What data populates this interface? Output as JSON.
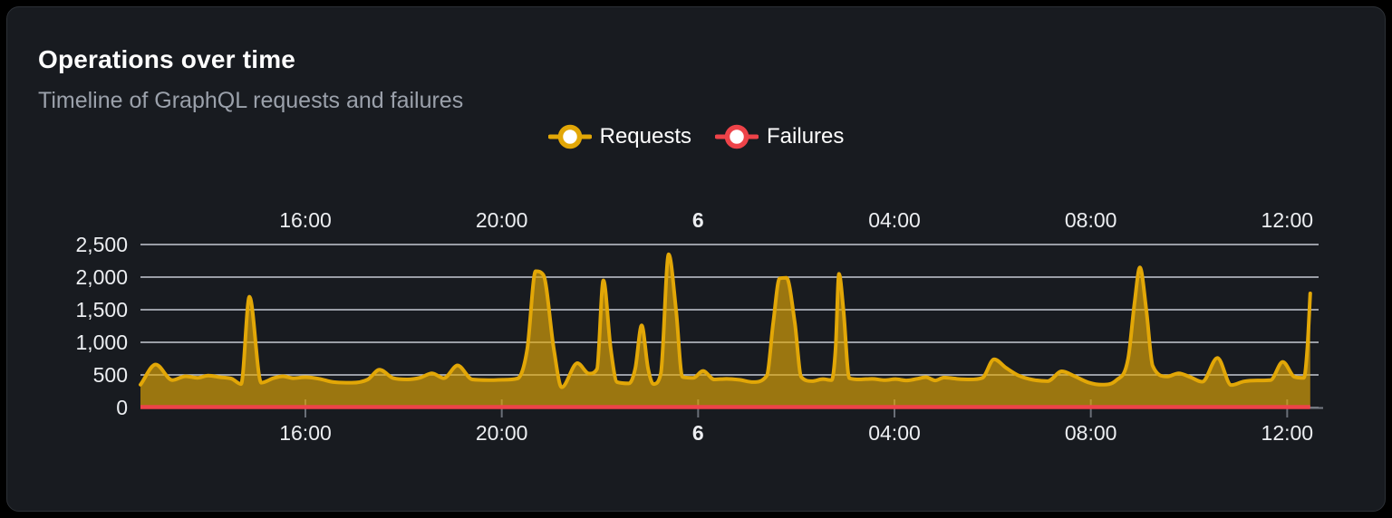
{
  "header": {
    "title": "Operations over time",
    "subtitle": "Timeline of GraphQL requests and failures"
  },
  "legend": {
    "items": [
      {
        "label": "Requests",
        "color": "#e2a707"
      },
      {
        "label": "Failures",
        "color": "#ee4349"
      }
    ]
  },
  "colors": {
    "page_bg": "#000000",
    "card_bg": "#181b20",
    "card_border": "#2c3036",
    "title": "#ffffff",
    "subtitle": "#9ba1ab",
    "axis_label": "#eceef1",
    "gridline": "#d4d8e2",
    "tick": "#6a6f78",
    "axis_stub": "#767b84",
    "requests": "#e2a707",
    "failures": "#ee4349",
    "legend_marker_inner": "#ffffff"
  },
  "chart_data": {
    "type": "area",
    "title": "Operations over time",
    "grid": "horizontal",
    "legend_position": "top-center",
    "x_axis": {
      "unit": "hours (offset from chart start, ~12:40 day 5 to ~12:40 day 6)",
      "range_hours": [
        0,
        24
      ],
      "ticks": [
        {
          "label": "16:00",
          "pos": 3.36,
          "bold": false
        },
        {
          "label": "20:00",
          "pos": 7.36,
          "bold": false
        },
        {
          "label": "6",
          "pos": 11.36,
          "bold": true
        },
        {
          "label": "04:00",
          "pos": 15.36,
          "bold": false
        },
        {
          "label": "08:00",
          "pos": 19.36,
          "bold": false
        },
        {
          "label": "12:00",
          "pos": 23.36,
          "bold": false
        }
      ]
    },
    "y_axis": {
      "range": [
        0,
        2500
      ],
      "tick_values": [
        0,
        500,
        1000,
        1500,
        2000,
        2500
      ],
      "tick_labels": [
        "0",
        "500",
        "1,000",
        "1,500",
        "2,000",
        "2,500"
      ]
    },
    "series": [
      {
        "name": "Requests",
        "color": "#e2a707",
        "fill_opacity": 0.65,
        "points": [
          [
            0,
            350
          ],
          [
            0.31,
            660
          ],
          [
            0.65,
            420
          ],
          [
            0.92,
            480
          ],
          [
            1.16,
            455
          ],
          [
            1.38,
            490
          ],
          [
            1.62,
            465
          ],
          [
            1.86,
            440
          ],
          [
            2.05,
            360
          ],
          [
            2.22,
            1700
          ],
          [
            2.46,
            380
          ],
          [
            2.71,
            450
          ],
          [
            2.9,
            480
          ],
          [
            3.12,
            450
          ],
          [
            3.36,
            465
          ],
          [
            3.64,
            440
          ],
          [
            3.93,
            390
          ],
          [
            4.3,
            380
          ],
          [
            4.63,
            430
          ],
          [
            4.87,
            580
          ],
          [
            5.15,
            450
          ],
          [
            5.43,
            430
          ],
          [
            5.69,
            455
          ],
          [
            5.94,
            525
          ],
          [
            6.18,
            450
          ],
          [
            6.46,
            645
          ],
          [
            6.76,
            430
          ],
          [
            7.09,
            420
          ],
          [
            7.38,
            425
          ],
          [
            7.68,
            445
          ],
          [
            7.88,
            900
          ],
          [
            8.05,
            2090
          ],
          [
            8.21,
            2030
          ],
          [
            8.42,
            900
          ],
          [
            8.58,
            310
          ],
          [
            8.9,
            680
          ],
          [
            9.14,
            520
          ],
          [
            9.3,
            590
          ],
          [
            9.43,
            1950
          ],
          [
            9.58,
            900
          ],
          [
            9.71,
            390
          ],
          [
            9.95,
            370
          ],
          [
            10.08,
            600
          ],
          [
            10.21,
            1260
          ],
          [
            10.34,
            600
          ],
          [
            10.45,
            360
          ],
          [
            10.6,
            520
          ],
          [
            10.76,
            2350
          ],
          [
            10.91,
            1500
          ],
          [
            11.04,
            470
          ],
          [
            11.26,
            455
          ],
          [
            11.46,
            560
          ],
          [
            11.69,
            430
          ],
          [
            11.94,
            440
          ],
          [
            12.2,
            425
          ],
          [
            12.48,
            390
          ],
          [
            12.76,
            490
          ],
          [
            12.89,
            1300
          ],
          [
            13.02,
            1980
          ],
          [
            13.16,
            1990
          ],
          [
            13.33,
            1300
          ],
          [
            13.46,
            470
          ],
          [
            13.68,
            405
          ],
          [
            13.9,
            435
          ],
          [
            14.08,
            420
          ],
          [
            14.16,
            900
          ],
          [
            14.23,
            2050
          ],
          [
            14.32,
            1500
          ],
          [
            14.44,
            450
          ],
          [
            14.66,
            430
          ],
          [
            14.9,
            440
          ],
          [
            15.16,
            420
          ],
          [
            15.38,
            435
          ],
          [
            15.6,
            415
          ],
          [
            15.82,
            440
          ],
          [
            16,
            465
          ],
          [
            16.19,
            415
          ],
          [
            16.37,
            460
          ],
          [
            16.63,
            440
          ],
          [
            16.89,
            430
          ],
          [
            17.15,
            455
          ],
          [
            17.39,
            740
          ],
          [
            17.63,
            610
          ],
          [
            17.89,
            490
          ],
          [
            18.18,
            425
          ],
          [
            18.48,
            405
          ],
          [
            18.77,
            555
          ],
          [
            19.03,
            480
          ],
          [
            19.31,
            385
          ],
          [
            19.59,
            350
          ],
          [
            19.88,
            420
          ],
          [
            20.12,
            750
          ],
          [
            20.25,
            1600
          ],
          [
            20.36,
            2150
          ],
          [
            20.49,
            1500
          ],
          [
            20.62,
            640
          ],
          [
            20.91,
            475
          ],
          [
            21.15,
            525
          ],
          [
            21.39,
            465
          ],
          [
            21.63,
            395
          ],
          [
            21.94,
            760
          ],
          [
            22.22,
            345
          ],
          [
            22.48,
            400
          ],
          [
            22.76,
            415
          ],
          [
            23.02,
            420
          ],
          [
            23.27,
            700
          ],
          [
            23.51,
            470
          ],
          [
            23.7,
            455
          ],
          [
            23.77,
            900
          ],
          [
            23.83,
            1750
          ]
        ]
      },
      {
        "name": "Failures",
        "color": "#ee4349",
        "points": [
          [
            0,
            0
          ],
          [
            23.83,
            0
          ]
        ]
      }
    ]
  }
}
